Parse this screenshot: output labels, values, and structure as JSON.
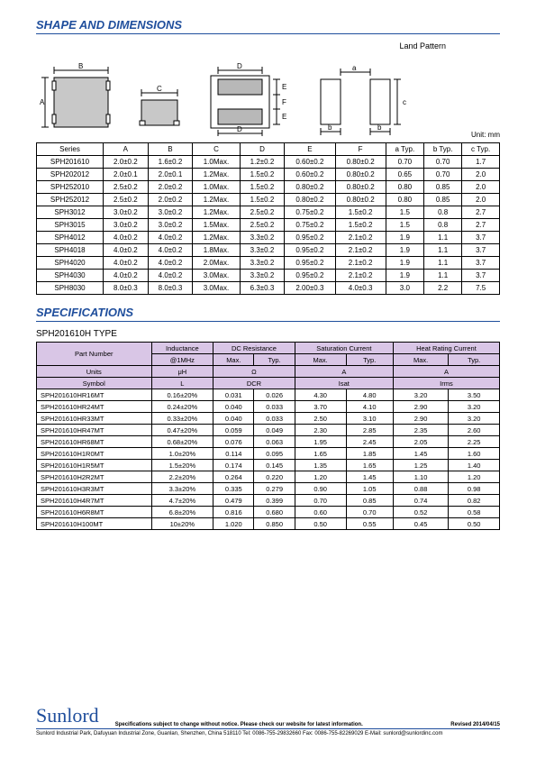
{
  "titles": {
    "shape": "SHAPE AND DIMENSIONS",
    "specs": "SPECIFICATIONS",
    "landPattern": "Land Pattern",
    "unit": "Unit: mm",
    "subtype": "SPH201610H TYPE"
  },
  "dimTable": {
    "headers": [
      "Series",
      "A",
      "B",
      "C",
      "D",
      "E",
      "F",
      "a Typ.",
      "b Typ.",
      "c Typ."
    ],
    "rows": [
      [
        "SPH201610",
        "2.0±0.2",
        "1.6±0.2",
        "1.0Max.",
        "1.2±0.2",
        "0.60±0.2",
        "0.80±0.2",
        "0.70",
        "0.70",
        "1.7"
      ],
      [
        "SPH202012",
        "2.0±0.1",
        "2.0±0.1",
        "1.2Max.",
        "1.5±0.2",
        "0.60±0.2",
        "0.80±0.2",
        "0.65",
        "0.70",
        "2.0"
      ],
      [
        "SPH252010",
        "2.5±0.2",
        "2.0±0.2",
        "1.0Max.",
        "1.5±0.2",
        "0.80±0.2",
        "0.80±0.2",
        "0.80",
        "0.85",
        "2.0"
      ],
      [
        "SPH252012",
        "2.5±0.2",
        "2.0±0.2",
        "1.2Max.",
        "1.5±0.2",
        "0.80±0.2",
        "0.80±0.2",
        "0.80",
        "0.85",
        "2.0"
      ],
      [
        "SPH3012",
        "3.0±0.2",
        "3.0±0.2",
        "1.2Max.",
        "2.5±0.2",
        "0.75±0.2",
        "1.5±0.2",
        "1.5",
        "0.8",
        "2.7"
      ],
      [
        "SPH3015",
        "3.0±0.2",
        "3.0±0.2",
        "1.5Max.",
        "2.5±0.2",
        "0.75±0.2",
        "1.5±0.2",
        "1.5",
        "0.8",
        "2.7"
      ],
      [
        "SPH4012",
        "4.0±0.2",
        "4.0±0.2",
        "1.2Max.",
        "3.3±0.2",
        "0.95±0.2",
        "2.1±0.2",
        "1.9",
        "1.1",
        "3.7"
      ],
      [
        "SPH4018",
        "4.0±0.2",
        "4.0±0.2",
        "1.8Max.",
        "3.3±0.2",
        "0.95±0.2",
        "2.1±0.2",
        "1.9",
        "1.1",
        "3.7"
      ],
      [
        "SPH4020",
        "4.0±0.2",
        "4.0±0.2",
        "2.0Max.",
        "3.3±0.2",
        "0.95±0.2",
        "2.1±0.2",
        "1.9",
        "1.1",
        "3.7"
      ],
      [
        "SPH4030",
        "4.0±0.2",
        "4.0±0.2",
        "3.0Max.",
        "3.3±0.2",
        "0.95±0.2",
        "2.1±0.2",
        "1.9",
        "1.1",
        "3.7"
      ],
      [
        "SPH8030",
        "8.0±0.3",
        "8.0±0.3",
        "3.0Max.",
        "6.3±0.3",
        "2.00±0.3",
        "4.0±0.3",
        "3.0",
        "2.2",
        "7.5"
      ]
    ]
  },
  "specTable": {
    "h1": [
      "Part Number",
      "Inductance",
      "DC Resistance",
      "Saturation Current",
      "Heat Rating Current"
    ],
    "h2": [
      "@1MHz",
      "Max.",
      "Typ.",
      "Max.",
      "Typ.",
      "Max.",
      "Typ."
    ],
    "unitsRow": [
      "Units",
      "μH",
      "Ω",
      "A",
      "A"
    ],
    "symbolRow": [
      "Symbol",
      "L",
      "DCR",
      "Isat",
      "Irms"
    ],
    "rows": [
      [
        "SPH201610HR16MT",
        "0.16±20%",
        "0.031",
        "0.026",
        "4.30",
        "4.80",
        "3.20",
        "3.50"
      ],
      [
        "SPH201610HR24MT",
        "0.24±20%",
        "0.040",
        "0.033",
        "3.70",
        "4.10",
        "2.90",
        "3.20"
      ],
      [
        "SPH201610HR33MT",
        "0.33±20%",
        "0.040",
        "0.033",
        "2.50",
        "3.10",
        "2.90",
        "3.20"
      ],
      [
        "SPH201610HR47MT",
        "0.47±20%",
        "0.059",
        "0.049",
        "2.30",
        "2.85",
        "2.35",
        "2.60"
      ],
      [
        "SPH201610HR68MT",
        "0.68±20%",
        "0.076",
        "0.063",
        "1.95",
        "2.45",
        "2.05",
        "2.25"
      ],
      [
        "SPH201610H1R0MT",
        "1.0±20%",
        "0.114",
        "0.095",
        "1.65",
        "1.85",
        "1.45",
        "1.60"
      ],
      [
        "SPH201610H1R5MT",
        "1.5±20%",
        "0.174",
        "0.145",
        "1.35",
        "1.65",
        "1.25",
        "1.40"
      ],
      [
        "SPH201610H2R2MT",
        "2.2±20%",
        "0.264",
        "0.220",
        "1.20",
        "1.45",
        "1.10",
        "1.20"
      ],
      [
        "SPH201610H3R3MT",
        "3.3±20%",
        "0.335",
        "0.279",
        "0.90",
        "1.05",
        "0.88",
        "0.98"
      ],
      [
        "SPH201610H4R7MT",
        "4.7±20%",
        "0.479",
        "0.399",
        "0.70",
        "0.85",
        "0.74",
        "0.82"
      ],
      [
        "SPH201610H6R8MT",
        "6.8±20%",
        "0.816",
        "0.680",
        "0.60",
        "0.70",
        "0.52",
        "0.58"
      ],
      [
        "SPH201610H100MT",
        "10±20%",
        "1.020",
        "0.850",
        "0.50",
        "0.55",
        "0.45",
        "0.50"
      ]
    ]
  },
  "footer": {
    "logo": "Sunlord",
    "disclaimer": "Specifications subject to change without notice. Please check our website for latest information.",
    "revised": "Revised 2014/04/15",
    "address": "Sunlord Industrial Park, Dafuyuan Industrial Zone, Guanlan, Shenzhen, China 518110 Tel: 0086-755-29832660 Fax: 0086-755-82269029 E-Mail: sunlord@sunlordinc.com"
  },
  "colors": {
    "brand": "#1f4e9c",
    "specHdrBg": "#d9c6e6",
    "gray": "#b8b8b8"
  }
}
